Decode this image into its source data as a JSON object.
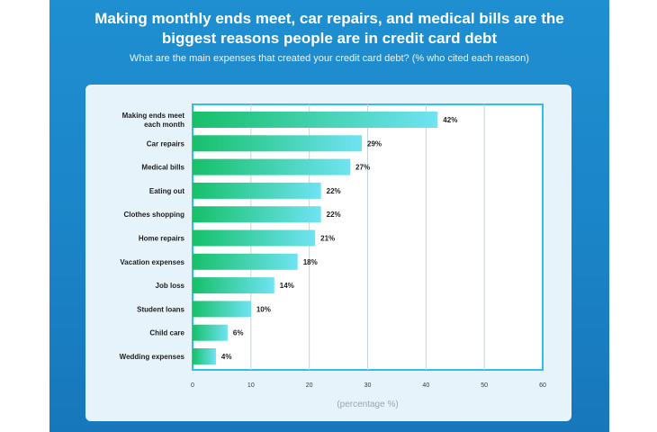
{
  "header": {
    "title_line1": "Making monthly ends meet, car repairs, and medical bills are the",
    "title_line2": "biggest reasons people are in credit card debt",
    "subtitle": "What are the main expenses that created your credit card debt? (% who cited each reason)"
  },
  "colors": {
    "background": "#1a84c7",
    "card": "#e6f3fa",
    "plot_border": "#2fc0e6",
    "bar_gradient_start": "#16c06a",
    "bar_gradient_end": "#6fe3f3",
    "grid": "#c9d3da"
  },
  "chart_data": {
    "type": "bar",
    "orientation": "horizontal",
    "title": "Making monthly ends meet, car repairs, and medical bills are the biggest reasons people are in credit card debt",
    "xlabel": "(percentage %)",
    "ylabel": "",
    "xlim": [
      0,
      60
    ],
    "xticks": [
      0,
      10,
      20,
      30,
      40,
      50,
      60
    ],
    "grid": true,
    "categories": [
      [
        "Making ends meet",
        "each month"
      ],
      [
        "Car repairs"
      ],
      [
        "Medical bills"
      ],
      [
        "Eating out"
      ],
      [
        "Clothes shopping"
      ],
      [
        "Home repairs"
      ],
      [
        "Vacation expenses"
      ],
      [
        "Job loss"
      ],
      [
        "Student loans"
      ],
      [
        "Child care"
      ],
      [
        "Wedding expenses"
      ]
    ],
    "values": [
      42,
      29,
      27,
      22,
      22,
      21,
      18,
      14,
      10,
      6,
      4
    ],
    "value_labels": [
      "42%",
      "29%",
      "27%",
      "22%",
      "22%",
      "21%",
      "18%",
      "14%",
      "10%",
      "6%",
      "4%"
    ]
  }
}
